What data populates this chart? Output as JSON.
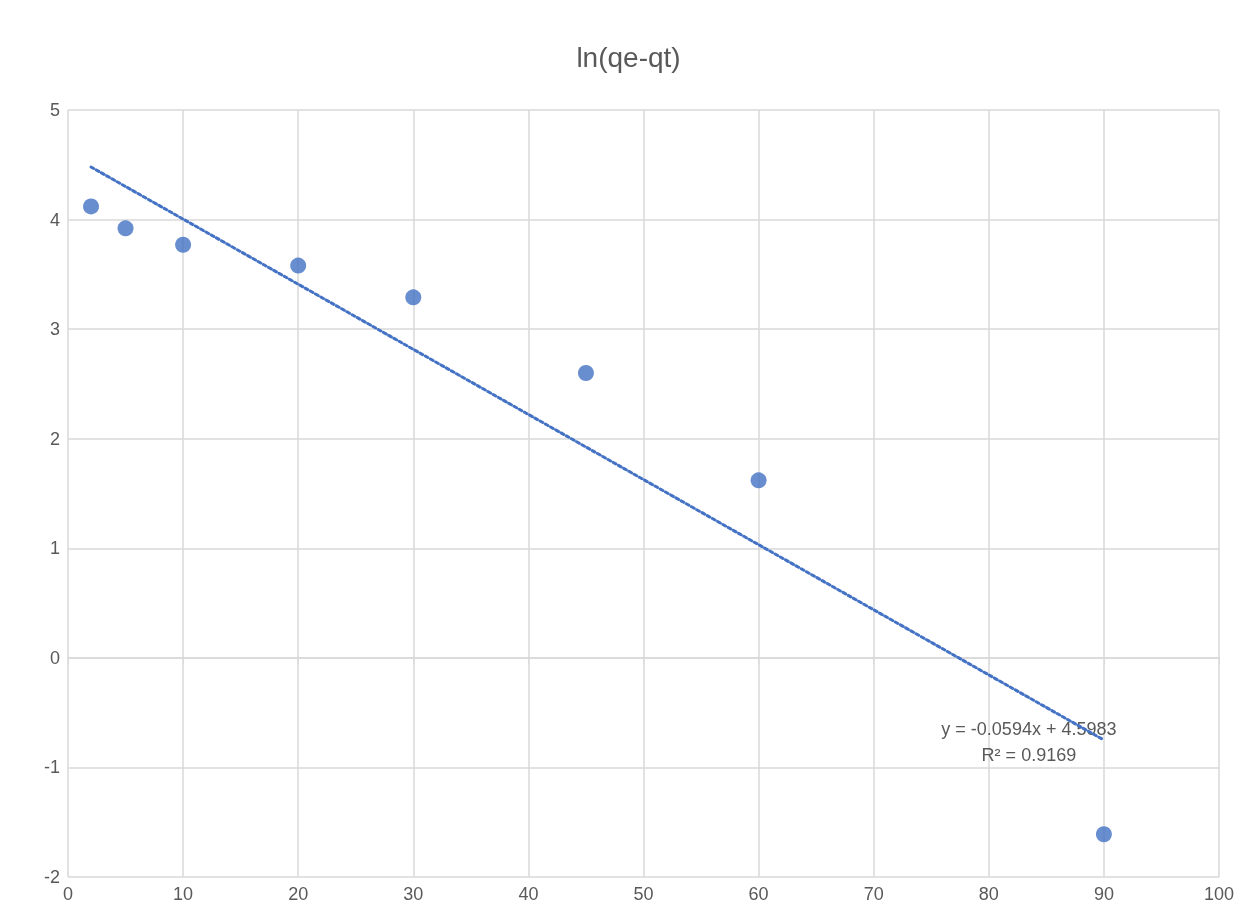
{
  "chart_data": {
    "type": "scatter",
    "title": "ln(qe-qt)",
    "x": [
      2,
      5,
      10,
      20,
      30,
      45,
      60,
      90
    ],
    "series": [
      {
        "color": "#4472c4",
        "values": [
          4.12,
          3.92,
          3.77,
          3.58,
          3.29,
          2.6,
          1.62,
          -1.61
        ]
      },
      {
        "type": "line",
        "color": "#4472c4",
        "x": [
          2,
          90
        ],
        "values": [
          4.48,
          -0.75
        ],
        "line_style": "dotted",
        "marker": "none"
      }
    ],
    "marker": "circle",
    "xlim": [
      0,
      100
    ],
    "xticks": [
      0,
      10,
      20,
      30,
      40,
      50,
      60,
      70,
      80,
      90,
      100
    ],
    "ylim": [
      -2,
      5
    ],
    "yticks": [
      -2,
      -1,
      0,
      1,
      2,
      3,
      4,
      5
    ],
    "grid": true,
    "annotations": [
      "y = -0.0594x + 4.5983",
      "R² = 0.9169"
    ]
  }
}
